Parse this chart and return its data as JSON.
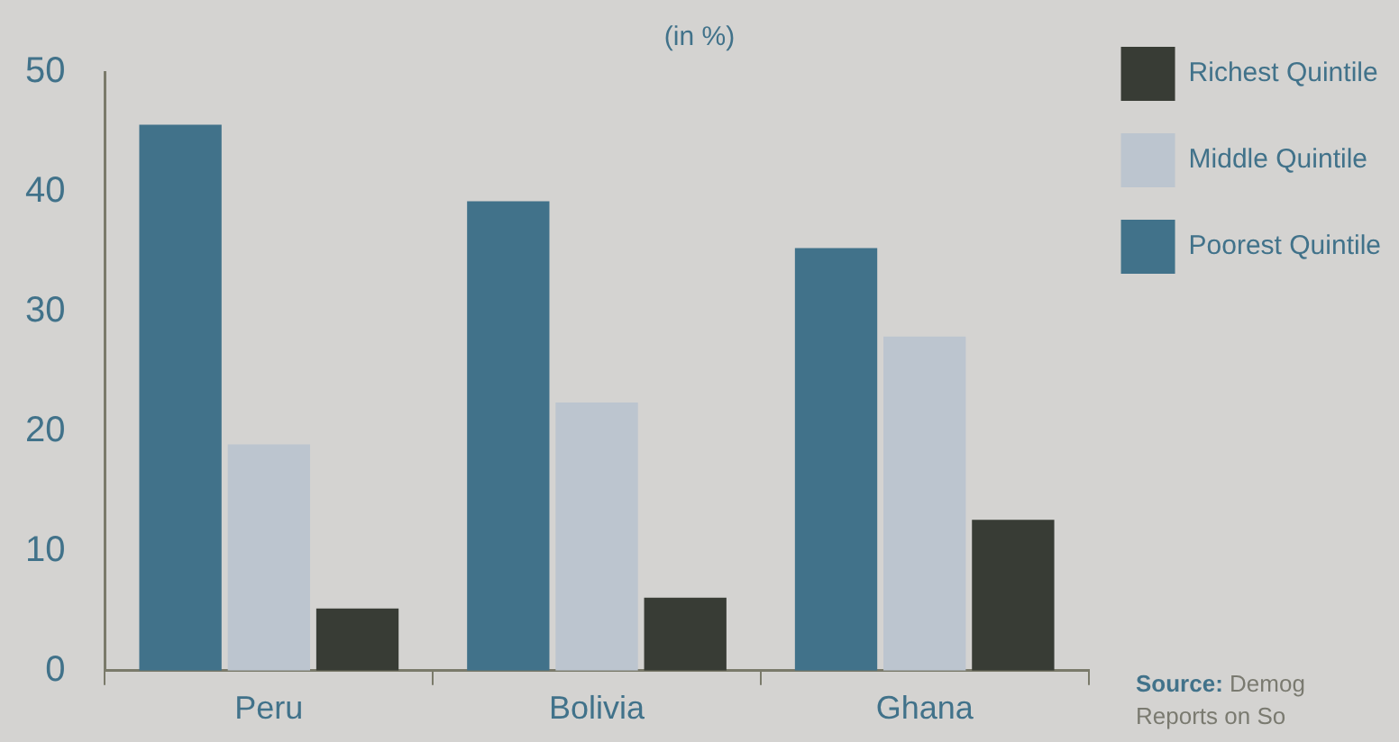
{
  "chart_data": {
    "type": "bar",
    "title": "(in %)",
    "categories": [
      "Peru",
      "Bolivia",
      "Ghana"
    ],
    "series": [
      {
        "name": "Poorest Quintile",
        "color": "#41728a",
        "values": [
          45.6,
          39.2,
          35.3
        ]
      },
      {
        "name": "Middle Quintile",
        "color": "#bcc5cf",
        "values": [
          18.9,
          22.4,
          27.9
        ]
      },
      {
        "name": "Richest Quintile",
        "color": "#383c35",
        "values": [
          5.2,
          6.1,
          12.6
        ]
      }
    ],
    "ylim": [
      0,
      50
    ],
    "yticks": [
      0,
      10,
      20,
      30,
      40,
      50
    ],
    "grid": false,
    "legend": "top right",
    "annotations": [
      "Source: Demog Reports on So"
    ]
  }
}
